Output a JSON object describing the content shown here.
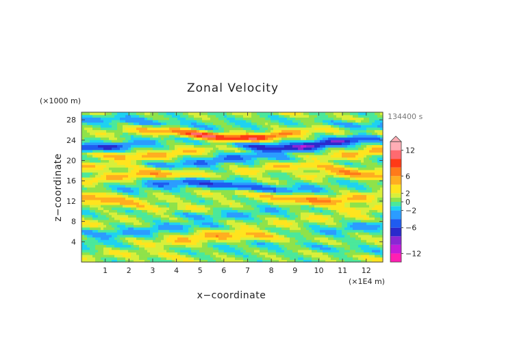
{
  "chart_data": {
    "type": "heatmap",
    "title": "Zonal Velocity",
    "xlabel": "x−coordinate",
    "ylabel": "z−coordinate",
    "x_unit": "(×1E4 m)",
    "y_unit": "(×1000 m)",
    "time_label": "134400 s",
    "xlim": [
      0,
      12.7
    ],
    "ylim": [
      0,
      29.5
    ],
    "x_ticks": [
      "1",
      "2",
      "3",
      "4",
      "5",
      "6",
      "7",
      "8",
      "9",
      "10",
      "11",
      "12"
    ],
    "x_tick_values": [
      1,
      2,
      3,
      4,
      5,
      6,
      7,
      8,
      9,
      10,
      11,
      12
    ],
    "y_ticks": [
      "4",
      "8",
      "12",
      "16",
      "20",
      "24",
      "28"
    ],
    "y_tick_values": [
      4,
      8,
      12,
      16,
      20,
      24,
      28
    ],
    "colorbar": {
      "levels": [
        -14,
        -12,
        -10,
        -8,
        -6,
        -4,
        -2,
        -1,
        0,
        1,
        2,
        4,
        6,
        8,
        10,
        12,
        14
      ],
      "tick_labels": [
        "12",
        "6",
        "2",
        "0",
        "−2",
        "−6",
        "−12"
      ],
      "tick_values": [
        12,
        6,
        2,
        0,
        -2,
        -6,
        -12
      ],
      "colors": [
        "#ff1fb2",
        "#c31cd9",
        "#8a27d4",
        "#2a2acc",
        "#1f5cf0",
        "#2b9cff",
        "#1ed2f0",
        "#4be89b",
        "#8fe24a",
        "#d8ef3a",
        "#ffe41e",
        "#ffae20",
        "#ff7a1a",
        "#ff3a17",
        "#ff6a70",
        "#ffadb5"
      ]
    },
    "bands": [
      {
        "z": 1.0,
        "amp": 2,
        "thick": 0.8
      },
      {
        "z": 3.0,
        "amp": -2,
        "thick": 0.9
      },
      {
        "z": 4.6,
        "amp": 5,
        "thick": 1.0
      },
      {
        "z": 6.4,
        "amp": -3,
        "thick": 0.8
      },
      {
        "z": 8.2,
        "amp": 2,
        "thick": 0.8
      },
      {
        "z": 9.9,
        "amp": -2,
        "thick": 0.8
      },
      {
        "z": 11.3,
        "amp": 3,
        "thick": 0.7
      },
      {
        "z": 13.0,
        "amp": 6,
        "thick": 0.9
      },
      {
        "z": 15.0,
        "amp": -7,
        "thick": 0.9
      },
      {
        "z": 16.6,
        "amp": 5,
        "thick": 0.8
      },
      {
        "z": 18.2,
        "amp": 4,
        "thick": 0.8
      },
      {
        "z": 20.1,
        "amp": -4,
        "thick": 0.8
      },
      {
        "z": 21.6,
        "amp": 5,
        "thick": 0.8
      },
      {
        "z": 23.4,
        "amp": -9,
        "thick": 0.8
      },
      {
        "z": 25.3,
        "amp": 11,
        "thick": 0.8
      },
      {
        "z": 27.4,
        "amp": -3,
        "thick": 0.9
      },
      {
        "z": 29.0,
        "amp": 2,
        "thick": 0.6
      }
    ]
  }
}
